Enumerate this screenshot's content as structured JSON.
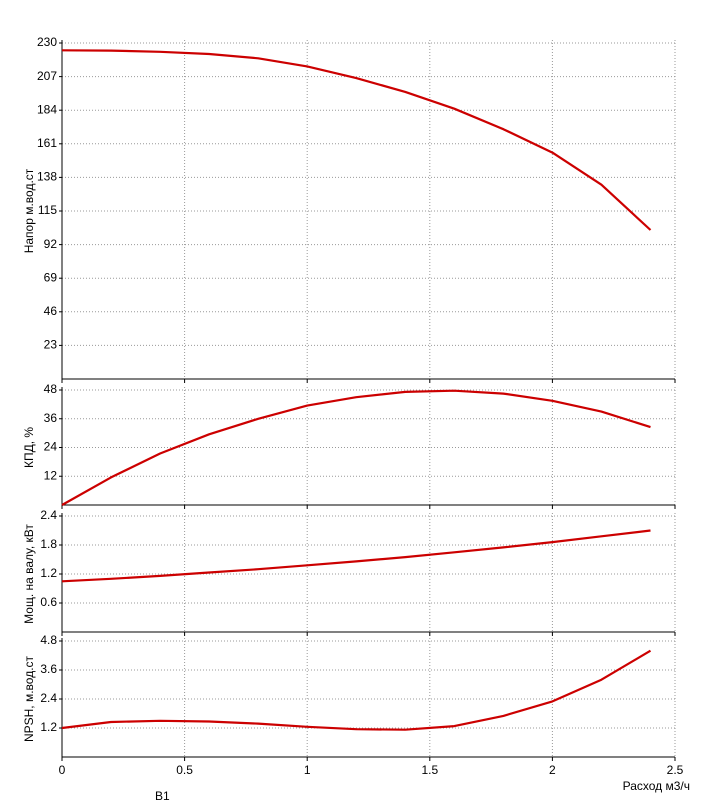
{
  "chart_data": [
    {
      "type": "line",
      "ylabel": "Напор м.вод.ст",
      "x": [
        0,
        0.2,
        0.4,
        0.6,
        0.8,
        1,
        1.2,
        1.4,
        1.6,
        1.8,
        2,
        2.2,
        2.4
      ],
      "values": [
        225,
        224.8,
        224,
        222.5,
        219.5,
        214,
        206,
        196.5,
        185,
        171,
        155,
        133,
        102
      ],
      "color": "#cc0000",
      "xlim": [
        0,
        2.5
      ],
      "xticks": [
        0,
        0.5,
        1,
        1.5,
        2,
        2.5
      ],
      "ylim": [
        0,
        230
      ],
      "yticks": [
        23,
        46,
        69,
        92,
        115,
        138,
        161,
        184,
        207,
        230
      ],
      "grid": true
    },
    {
      "type": "line",
      "ylabel": "КПД, %",
      "x": [
        0,
        0.2,
        0.4,
        0.6,
        0.8,
        1,
        1.2,
        1.4,
        1.6,
        1.8,
        2,
        2.2,
        2.4
      ],
      "values": [
        0,
        11.5,
        21.5,
        29.5,
        36,
        41.5,
        45,
        47.2,
        47.7,
        46.5,
        43.5,
        39,
        32.5
      ],
      "color": "#cc0000",
      "xlim": [
        0,
        2.5
      ],
      "xticks": [
        0,
        0.5,
        1,
        1.5,
        2,
        2.5
      ],
      "ylim": [
        0,
        48
      ],
      "yticks": [
        12,
        24,
        36,
        48
      ],
      "grid": true
    },
    {
      "type": "line",
      "ylabel": "Мощ. на валу, кВт",
      "x": [
        0,
        0.2,
        0.4,
        0.6,
        0.8,
        1,
        1.2,
        1.4,
        1.6,
        1.8,
        2,
        2.2,
        2.4
      ],
      "values": [
        1.05,
        1.1,
        1.16,
        1.23,
        1.3,
        1.38,
        1.46,
        1.55,
        1.65,
        1.75,
        1.86,
        1.98,
        2.1
      ],
      "color": "#cc0000",
      "xlim": [
        0,
        2.5
      ],
      "xticks": [
        0,
        0.5,
        1,
        1.5,
        2,
        2.5
      ],
      "ylim": [
        0,
        2.4
      ],
      "yticks": [
        0.6,
        1.2,
        1.8,
        2.4
      ],
      "grid": true
    },
    {
      "type": "line",
      "ylabel": "NPSH, м.вод.ст",
      "xlabel": "Расход м3/ч",
      "note": "B1",
      "x": [
        0,
        0.2,
        0.4,
        0.6,
        0.8,
        1,
        1.2,
        1.4,
        1.6,
        1.8,
        2,
        2.2,
        2.4
      ],
      "values": [
        1.2,
        1.45,
        1.5,
        1.47,
        1.38,
        1.25,
        1.15,
        1.13,
        1.28,
        1.7,
        2.3,
        3.2,
        4.4
      ],
      "color": "#cc0000",
      "xlim": [
        0,
        2.5
      ],
      "xticks": [
        0,
        0.5,
        1,
        1.5,
        2,
        2.5
      ],
      "ylim": [
        0,
        4.8
      ],
      "yticks": [
        1.2,
        2.4,
        3.6,
        4.8
      ],
      "grid": true
    }
  ]
}
